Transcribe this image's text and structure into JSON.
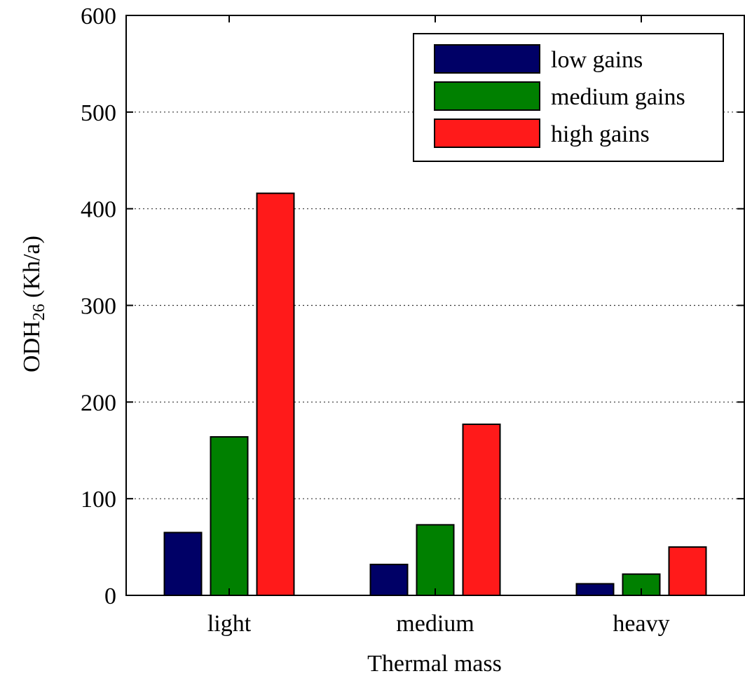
{
  "chart_data": {
    "type": "bar",
    "categories": [
      "light",
      "medium",
      "heavy"
    ],
    "series": [
      {
        "name": "low gains",
        "color": "#000066",
        "values": [
          65,
          32,
          12
        ]
      },
      {
        "name": "medium gains",
        "color": "#008000",
        "values": [
          164,
          73,
          22
        ]
      },
      {
        "name": "high gains",
        "color": "#ff1a1a",
        "values": [
          416,
          177,
          50
        ]
      }
    ],
    "xlabel": "Thermal mass",
    "ylabel": {
      "main": "ODH",
      "sub": "26",
      "unit": " (Kh/a)"
    },
    "ylim": [
      0,
      600
    ],
    "yticks": [
      "0",
      "100",
      "200",
      "300",
      "400",
      "500",
      "600"
    ],
    "grid": "horizontal-dotted",
    "legend_position": "top-right"
  }
}
